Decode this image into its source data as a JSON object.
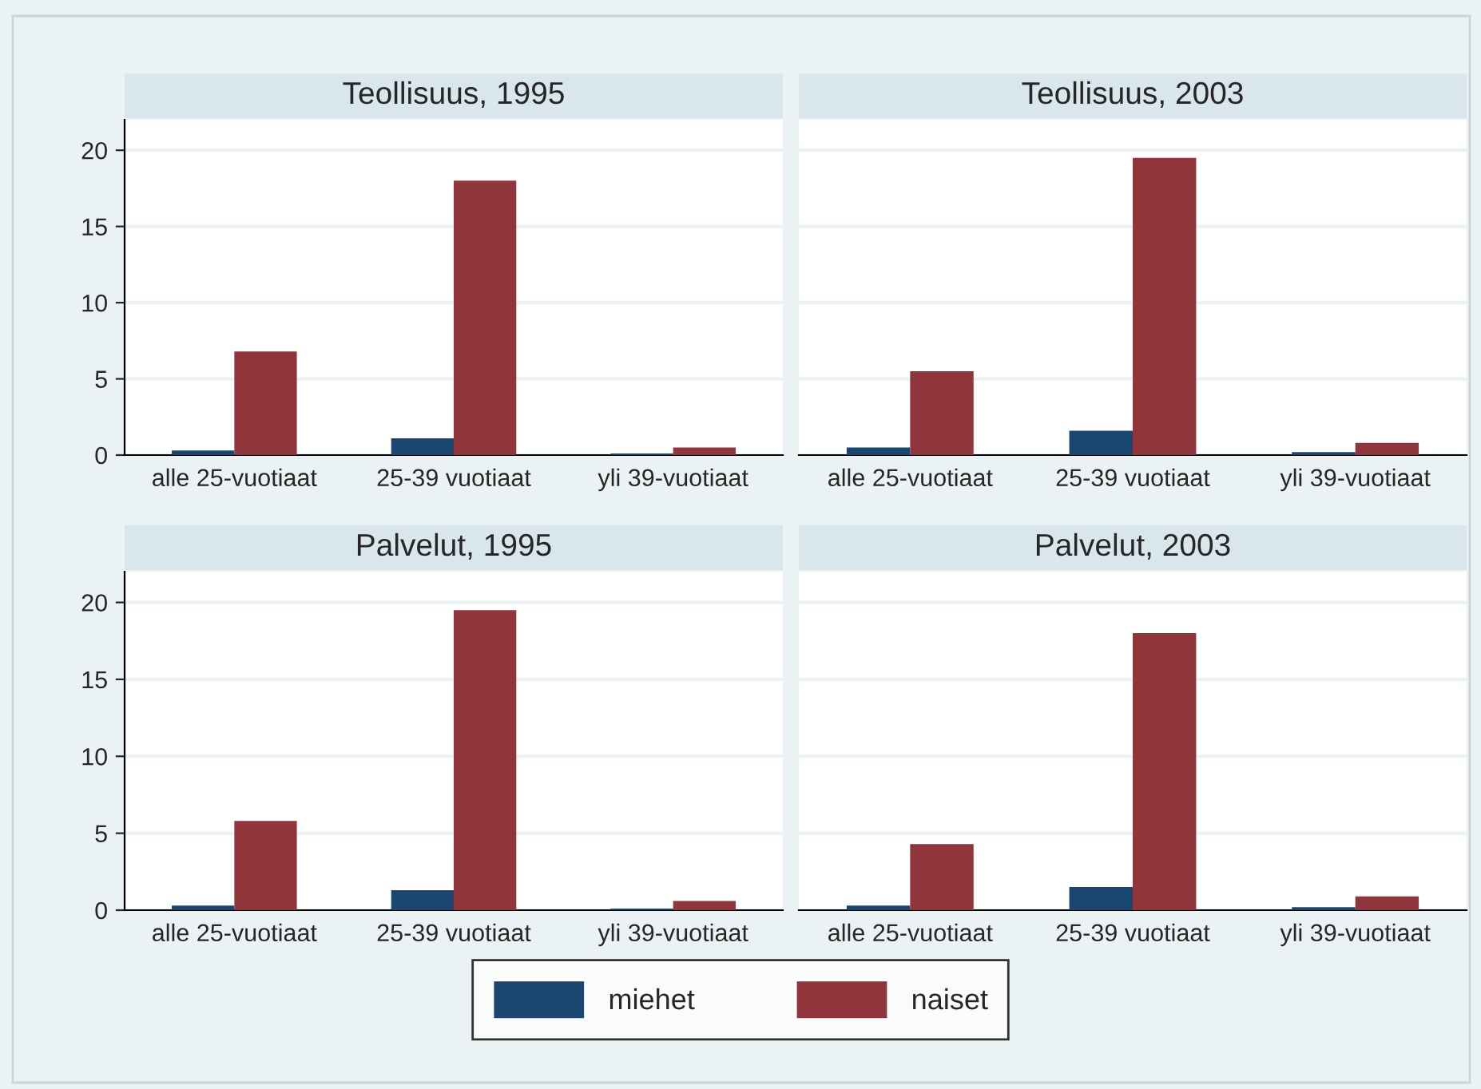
{
  "chart_data": [
    {
      "type": "bar",
      "title": "Teollisuus, 1995",
      "categories": [
        "alle 25-vuotiaat",
        "25-39 vuotiaat",
        "yli 39-vuotiaat"
      ],
      "ylim": [
        0,
        22
      ],
      "yticks": [
        0,
        5,
        10,
        15,
        20
      ],
      "grid": "y",
      "legend": "bottom",
      "series": [
        {
          "name": "miehet",
          "color": "#1a476f",
          "values": [
            0.3,
            1.1,
            0.1
          ]
        },
        {
          "name": "naiset",
          "color": "#90353b",
          "values": [
            6.8,
            18.0,
            0.5
          ]
        }
      ]
    },
    {
      "type": "bar",
      "title": "Teollisuus, 2003",
      "categories": [
        "alle 25-vuotiaat",
        "25-39 vuotiaat",
        "yli 39-vuotiaat"
      ],
      "ylim": [
        0,
        22
      ],
      "yticks": [
        0,
        5,
        10,
        15,
        20
      ],
      "grid": "y",
      "tick_labels": "x",
      "series": [
        {
          "color": "#1a476f",
          "values": [
            0.5,
            1.6,
            0.2
          ]
        },
        {
          "color": "#90353b",
          "values": [
            5.5,
            19.5,
            0.8
          ]
        }
      ]
    },
    {
      "type": "bar",
      "title": "Palvelut, 1995",
      "categories": [
        "alle 25-vuotiaat",
        "25-39 vuotiaat",
        "yli 39-vuotiaat"
      ],
      "ylim": [
        0,
        22
      ],
      "yticks": [
        0,
        5,
        10,
        15,
        20
      ],
      "grid": "y",
      "series": [
        {
          "color": "#1a476f",
          "values": [
            0.3,
            1.3,
            0.1
          ]
        },
        {
          "color": "#90353b",
          "values": [
            5.8,
            19.5,
            0.6
          ]
        }
      ]
    },
    {
      "type": "bar",
      "title": "Palvelut, 2003",
      "categories": [
        "alle 25-vuotiaat",
        "25-39 vuotiaat",
        "yli 39-vuotiaat"
      ],
      "ylim": [
        0,
        22
      ],
      "yticks": [
        0,
        5,
        10,
        15,
        20
      ],
      "grid": "y",
      "tick_labels": "x",
      "series": [
        {
          "color": "#1a476f",
          "values": [
            0.3,
            1.5,
            0.2
          ]
        },
        {
          "color": "#90353b",
          "values": [
            4.3,
            18.0,
            0.9
          ]
        }
      ]
    }
  ]
}
